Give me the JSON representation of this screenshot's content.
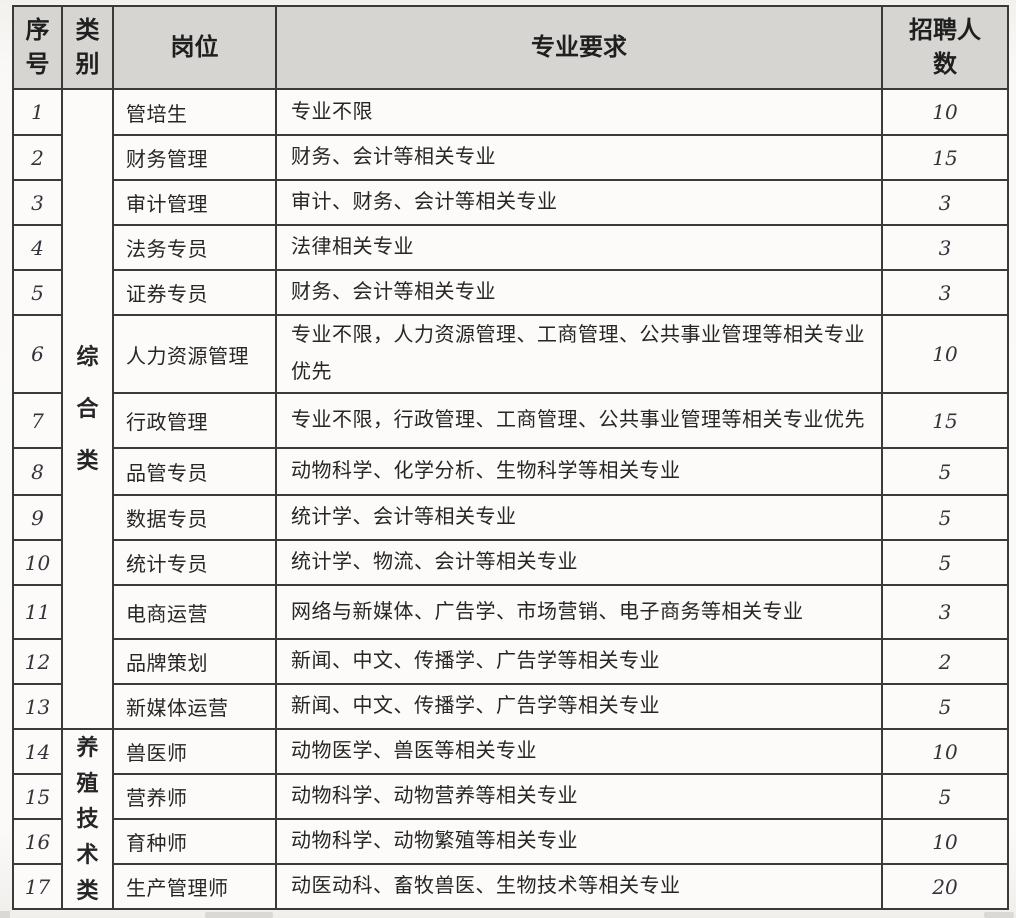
{
  "table": {
    "columns": [
      "序号",
      "类别",
      "岗位",
      "专业要求",
      "招聘人数"
    ],
    "categories": [
      {
        "label": "综合类",
        "start": 0,
        "rowspan": 13,
        "style": "loose"
      },
      {
        "label": "养殖技术类",
        "start": 13,
        "rowspan": 4,
        "style": "tight"
      }
    ],
    "rows": [
      {
        "no": "1",
        "position": "管培生",
        "requirement": "专业不限",
        "count": "10"
      },
      {
        "no": "2",
        "position": "财务管理",
        "requirement": "财务、会计等相关专业",
        "count": "15"
      },
      {
        "no": "3",
        "position": "审计管理",
        "requirement": "审计、财务、会计等相关专业",
        "count": "3"
      },
      {
        "no": "4",
        "position": "法务专员",
        "requirement": "法律相关专业",
        "count": "3"
      },
      {
        "no": "5",
        "position": "证券专员",
        "requirement": "财务、会计等相关专业",
        "count": "3"
      },
      {
        "no": "6",
        "position": "人力资源管理",
        "requirement": "专业不限，人力资源管理、工商管理、公共事业管理等相关专业优先",
        "count": "10"
      },
      {
        "no": "7",
        "position": "行政管理",
        "requirement": "专业不限，行政管理、工商管理、公共事业管理等相关专业优先",
        "count": "15"
      },
      {
        "no": "8",
        "position": "品管专员",
        "requirement": "动物科学、化学分析、生物科学等相关专业",
        "count": "5"
      },
      {
        "no": "9",
        "position": "数据专员",
        "requirement": "统计学、会计等相关专业",
        "count": "5"
      },
      {
        "no": "10",
        "position": "统计专员",
        "requirement": "统计学、物流、会计等相关专业",
        "count": "5"
      },
      {
        "no": "11",
        "position": "电商运营",
        "requirement": "网络与新媒体、广告学、市场营销、电子商务等相关专业",
        "count": "3"
      },
      {
        "no": "12",
        "position": "品牌策划",
        "requirement": "新闻、中文、传播学、广告学等相关专业",
        "count": "2"
      },
      {
        "no": "13",
        "position": "新媒体运营",
        "requirement": "新闻、中文、传播学、广告学等相关专业",
        "count": "5"
      },
      {
        "no": "14",
        "position": "兽医师",
        "requirement": "动物医学、兽医等相关专业",
        "count": "10"
      },
      {
        "no": "15",
        "position": "营养师",
        "requirement": "动物科学、动物营养等相关专业",
        "count": "5"
      },
      {
        "no": "16",
        "position": "育种师",
        "requirement": "动物科学、动物繁殖等相关专业",
        "count": "10"
      },
      {
        "no": "17",
        "position": "生产管理师",
        "requirement": "动医动科、畜牧兽医、生物技术等相关专业",
        "count": "20"
      }
    ]
  },
  "colors": {
    "header_bg": "#d6d5d2",
    "cell_bg": "#fcfbf9",
    "border": "#3a3a3a",
    "page_bg": "#f5f4f1",
    "text": "#262626"
  }
}
